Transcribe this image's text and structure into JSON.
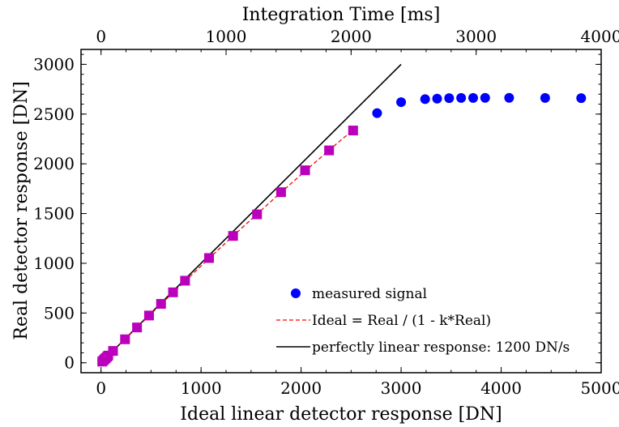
{
  "chart_data": {
    "type": "scatter",
    "xlabel": "Ideal linear detector response [DN]",
    "ylabel": "Real detector response [DN]",
    "top_xlabel": "Integration Time [ms]",
    "xlim": [
      -200,
      5000
    ],
    "ylim": [
      -100,
      3150
    ],
    "top_xlim": [
      -160,
      4000
    ],
    "xticks": [
      0,
      1000,
      2000,
      3000,
      4000,
      5000
    ],
    "yticks": [
      0,
      500,
      1000,
      1500,
      2000,
      2500,
      3000
    ],
    "top_xticks": [
      0,
      1000,
      2000,
      3000,
      4000
    ],
    "legend_position": "lower-right",
    "grid": false,
    "series": [
      {
        "name": "measured signal",
        "marker": "circle",
        "color": "#0000ff",
        "x": [
          2760,
          3000,
          3240,
          3360,
          3480,
          3600,
          3720,
          3840,
          4080,
          4440,
          4800
        ],
        "y": [
          2510,
          2620,
          2650,
          2655,
          2660,
          2662,
          2662,
          2663,
          2663,
          2662,
          2660
        ]
      },
      {
        "name": "",
        "marker": "square",
        "color": "#bb00bb",
        "x": [
          12,
          24,
          36,
          48,
          60,
          72,
          120,
          240,
          360,
          480,
          600,
          720,
          840,
          1080,
          1320,
          1560,
          1800,
          2040,
          2280,
          2520
        ],
        "y": [
          12,
          24,
          36,
          48,
          60,
          72,
          119,
          236,
          355,
          475,
          592,
          708,
          825,
          1053,
          1275,
          1492,
          1715,
          1935,
          2135,
          2335
        ]
      },
      {
        "name": "Ideal = Real / (1 - k*Real)",
        "style": "dashed",
        "color": "#ff0000",
        "x": [
          0,
          240,
          480,
          720,
          960,
          1200,
          1440,
          1680,
          1920,
          2160,
          2400,
          2520
        ],
        "y": [
          0,
          237,
          472,
          705,
          935,
          1162,
          1385,
          1605,
          1820,
          2032,
          2240,
          2340
        ]
      },
      {
        "name": "perfectly linear response: 1200 DN/s",
        "style": "solid",
        "color": "#000000",
        "x": [
          0,
          3000
        ],
        "y": [
          0,
          3000
        ]
      }
    ]
  }
}
